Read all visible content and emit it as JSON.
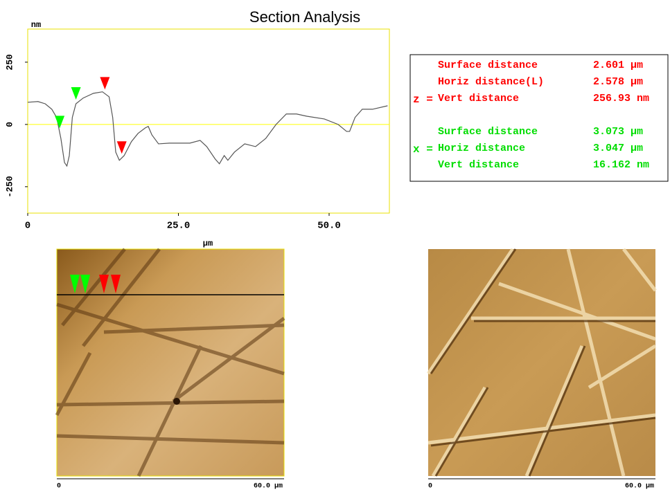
{
  "chart_data": {
    "type": "line",
    "title": "Section Analysis",
    "ylabel": "nm",
    "xlabel": "µm",
    "x": [
      0,
      1.7,
      2.9,
      4.0,
      4.8,
      5.5,
      6.1,
      6.5,
      6.9,
      7.4,
      8.0,
      9.2,
      10.9,
      12.4,
      13.5,
      14.1,
      14.6,
      15.2,
      16.0,
      17.2,
      18.3,
      19.5,
      20.0,
      20.6,
      21.7,
      23.5,
      26.9,
      28.6,
      29.7,
      31.1,
      31.8,
      32.6,
      33.2,
      34.3,
      36.0,
      37.8,
      39.5,
      41.2,
      42.9,
      44.6,
      46.3,
      49.2,
      51.5,
      52.9,
      53.4,
      54.3,
      55.5,
      57.2,
      59.7
    ],
    "series": [
      {
        "color": "#555555",
        "values": [
          89,
          92,
          83,
          61,
          28,
          -56,
          -153,
          -167,
          -125,
          28,
          83,
          106,
          125,
          131,
          111,
          28,
          -111,
          -144,
          -125,
          -69,
          -36,
          -14,
          -8,
          -42,
          -78,
          -75,
          -75,
          -64,
          -89,
          -139,
          -158,
          -125,
          -144,
          -111,
          -78,
          -89,
          -56,
          0,
          42,
          42,
          33,
          22,
          0,
          -28,
          -28,
          28,
          61,
          61,
          75
        ]
      }
    ],
    "xlim": [
      0,
      60
    ],
    "ylim": [
      -356,
      383
    ],
    "xticks": [
      0,
      {
        "value": 25,
        "label": "25.0"
      },
      {
        "value": 50,
        "label": "50.0"
      }
    ],
    "yticks": [
      -250,
      0,
      250
    ],
    "hline": {
      "value": 0,
      "color": "#ffff00"
    },
    "cursors": [
      {
        "color": "#00ff00",
        "x": [
          5.3,
          8.0
        ]
      },
      {
        "color": "#ff0000",
        "x": [
          12.8,
          15.6
        ]
      }
    ]
  },
  "readout": {
    "groups": [
      {
        "label": "z =",
        "color": "#ff0000",
        "rows": [
          {
            "name": "Surface distance",
            "value": "2.601 µm"
          },
          {
            "name": "Horiz distance(L)",
            "value": "2.578 µm"
          },
          {
            "name": "Vert distance",
            "value": "256.93 nm"
          }
        ]
      },
      {
        "label": "x =",
        "color": "#00dd00",
        "rows": [
          {
            "name": "Surface distance",
            "value": "3.073 µm"
          },
          {
            "name": "Horiz distance",
            "value": "3.047 µm"
          },
          {
            "name": "Vert distance",
            "value": "16.162 nm"
          }
        ]
      }
    ]
  },
  "images": [
    {
      "start": "0",
      "end": "60.0 µm"
    },
    {
      "start": "0",
      "end": "60.0 µm"
    }
  ]
}
